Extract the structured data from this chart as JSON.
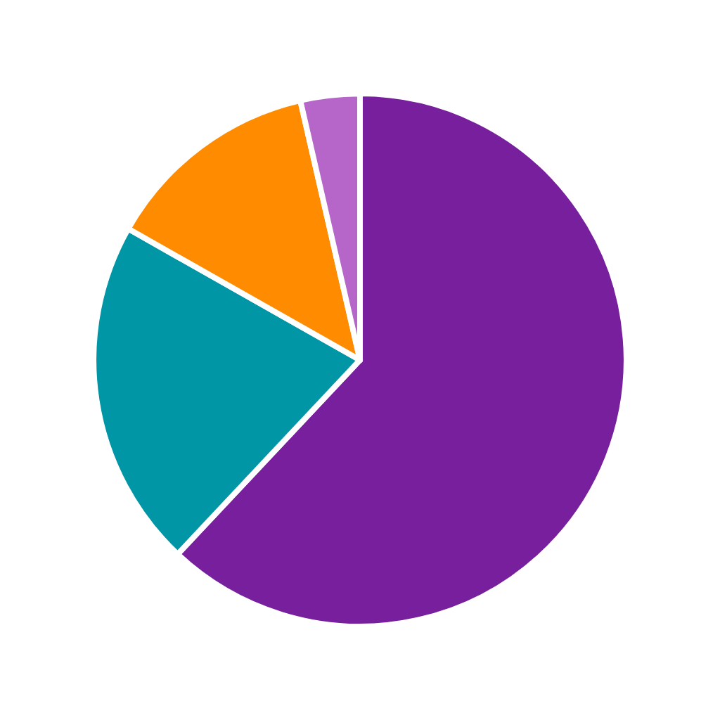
{
  "chart_data": {
    "type": "pie",
    "categories": [
      null,
      null,
      null,
      null
    ],
    "values": [
      62,
      21.2,
      13.2,
      3.6
    ],
    "colors": [
      "#781f9e",
      "#0096a5",
      "#ff8c00",
      "#b666c9"
    ],
    "legend": false
  }
}
